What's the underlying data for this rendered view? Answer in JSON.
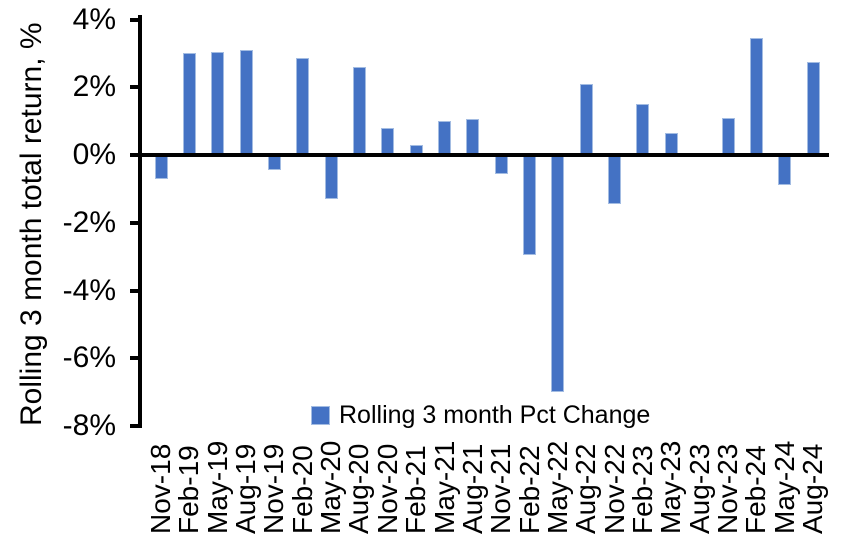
{
  "chart_data": {
    "type": "bar",
    "title": "",
    "xlabel": "",
    "ylabel": "Rolling 3 month total return, %",
    "categories": [
      "Nov-18",
      "Feb-19",
      "May-19",
      "Aug-19",
      "Nov-19",
      "Feb-20",
      "May-20",
      "Aug-20",
      "Nov-20",
      "Feb-21",
      "May-21",
      "Aug-21",
      "Nov-21",
      "Feb-22",
      "May-22",
      "Aug-22",
      "Nov-22",
      "Feb-23",
      "May-23",
      "Aug-23",
      "Nov-23",
      "Feb-24",
      "May-24",
      "Aug-24"
    ],
    "series": [
      {
        "name": "Rolling 3 month Pct Change",
        "values": [
          -0.7,
          3.0,
          3.05,
          3.1,
          -0.45,
          2.85,
          -1.3,
          2.6,
          0.8,
          0.3,
          1.0,
          1.05,
          -0.55,
          -2.95,
          -7.0,
          2.1,
          -1.45,
          1.5,
          0.65,
          0.0,
          1.1,
          3.45,
          -0.9,
          2.75
        ]
      }
    ],
    "ylim": [
      -8,
      4
    ],
    "ytick_step": 2,
    "ytick_labels": [
      "4%",
      "2%",
      "0%",
      "-2%",
      "-4%",
      "-6%",
      "-8%"
    ],
    "grid": false,
    "legend_position": "bottom-center",
    "colors": {
      "bar": "#4472C4",
      "bar_edge": "#A3BCE2",
      "axis": "#000000",
      "text": "#000000",
      "background": "#FFFFFF"
    }
  },
  "legend": {
    "label": "Rolling 3 month Pct Change",
    "marker_color": "#4472C4"
  }
}
